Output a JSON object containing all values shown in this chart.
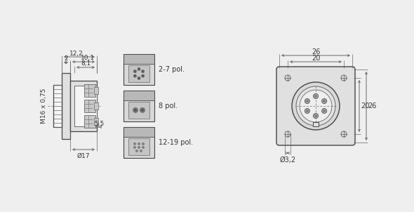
{
  "bg_color": "#efefef",
  "line_color": "#666666",
  "dark_line": "#444444",
  "text_color": "#333333",
  "dim_color": "#666666",
  "fill_light": "#e0e0e0",
  "fill_mid": "#c8c8c8",
  "fill_dark": "#b0b0b0",
  "white": "#f5f5f5",
  "fig_width": 5.9,
  "fig_height": 3.02,
  "dpi": 100,
  "labels": {
    "dim_12_2": "12,2",
    "dim_10_1": "10,1",
    "dim_8_1": "8,1",
    "dim_2": "2",
    "dim_5_5": "5,5",
    "dim_M16": "M16 x 0,75",
    "dim_17": "Ø17",
    "dim_26_h": "26",
    "dim_20_h": "20",
    "dim_26_v": "26",
    "dim_20_v": "20",
    "dim_3_2": "Ø3,2",
    "pol_2_7": "2-7 pol.",
    "pol_8": "8 pol.",
    "pol_12_19": "12-19 pol."
  }
}
